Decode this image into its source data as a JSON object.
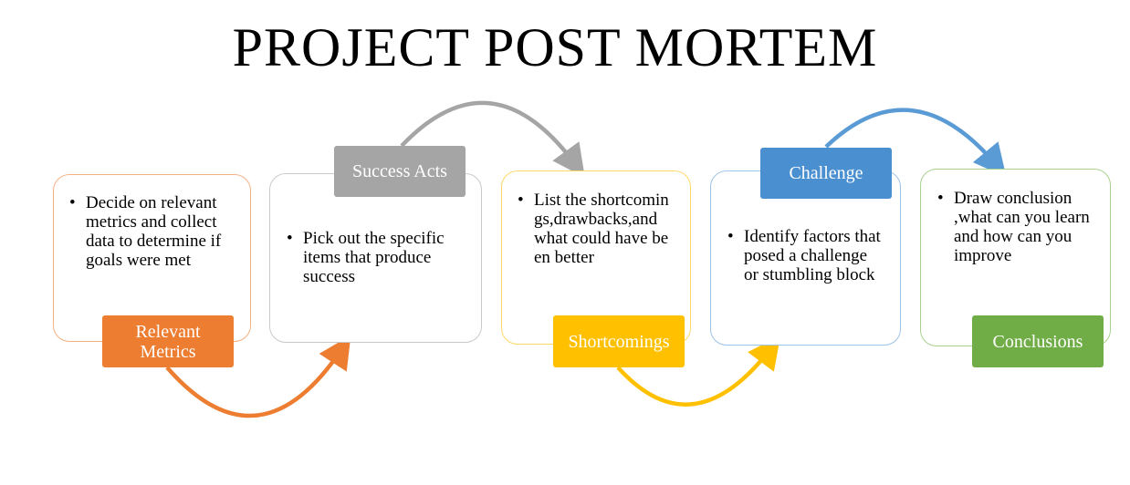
{
  "title": "PROJECT POST MORTEM",
  "colors": {
    "orange": "#ED7D31",
    "gray": "#A5A5A5",
    "yellow": "#FFC000",
    "blue": "#5B9BD5",
    "green": "#70AD47"
  },
  "bullet_glyph": "•",
  "steps": [
    {
      "label": "Relevant Metrics",
      "text": "Decide on relevant metrics and collect data to determine if goals were met"
    },
    {
      "label": "Success Acts",
      "text": "Pick out the specific items that produce success"
    },
    {
      "label": "Shortcomings",
      "text": "List the shortcomings,drawbacks,and what could have been better"
    },
    {
      "label": "Challenge",
      "text": "Identify factors that posed a challenge or stumbling block"
    },
    {
      "label": "Conclusions",
      "text": "Draw conclusion ,what can you learn and how can you improve"
    }
  ]
}
